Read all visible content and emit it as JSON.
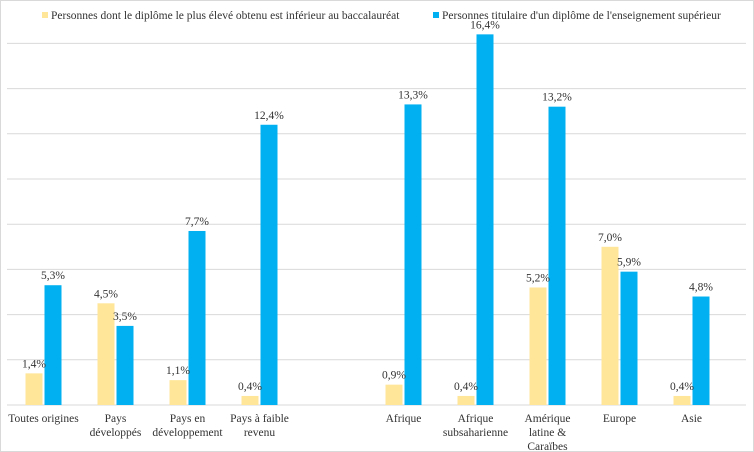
{
  "chart_data": {
    "type": "bar",
    "title": "",
    "xlabel": "",
    "ylabel": "",
    "ylim": [
      0,
      18
    ],
    "grid": true,
    "legend_position": "top",
    "categories": [
      "Toutes origines",
      "Pays développés",
      "Pays en développement",
      "Pays à faible revenu",
      "",
      "Afrique",
      "Afrique subsaharienne",
      "Amérique latine & Caraïbes",
      "Europe",
      "Asie"
    ],
    "category_lines": [
      [
        "Toutes origines"
      ],
      [
        "Pays",
        "développés"
      ],
      [
        "Pays en",
        "développement"
      ],
      [
        "Pays à faible",
        "revenu"
      ],
      [],
      [
        "Afrique"
      ],
      [
        "Afrique",
        "subsaharienne"
      ],
      [
        "Amérique",
        "latine &",
        "Caraïbes"
      ],
      [
        "Europe"
      ],
      [
        "Asie"
      ]
    ],
    "series": [
      {
        "name": "Personnes dont le diplôme le plus élevé obtenu est inférieur au baccalauréat",
        "color": "#ffe699",
        "values": [
          1.4,
          4.5,
          1.1,
          0.4,
          null,
          0.9,
          0.4,
          5.2,
          7.0,
          0.4
        ],
        "labels": [
          "1,4%",
          "4,5%",
          "1,1%",
          "0,4%",
          "",
          "0,9%",
          "0,4%",
          "5,2%",
          "7,0%",
          "0,4%"
        ]
      },
      {
        "name": "Personnes titulaire d'un diplôme de l'enseignement supérieur",
        "color": "#00b0f0",
        "values": [
          5.3,
          3.5,
          7.7,
          12.4,
          null,
          13.3,
          16.4,
          13.2,
          5.9,
          4.8
        ],
        "labels": [
          "5,3%",
          "3,5%",
          "7,7%",
          "12,4%",
          "",
          "13,3%",
          "16,4%",
          "13,2%",
          "5,9%",
          "4,8%"
        ]
      }
    ]
  }
}
